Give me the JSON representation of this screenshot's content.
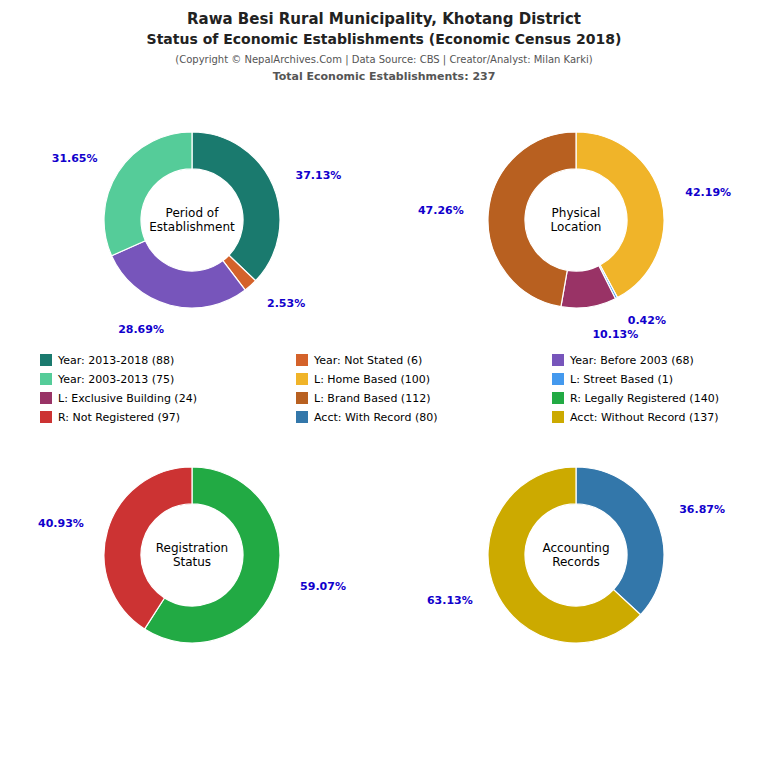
{
  "title": "Rawa Besi Rural Municipality, Khotang District",
  "subtitle": "Status of Economic Establishments (Economic Census 2018)",
  "annotations": [
    "(Copyright © NepalArchives.Com | Data Source: CBS | Creator/Analyst: Milan Karki)",
    "Total Economic Establishments: 237"
  ],
  "chart_data": [
    {
      "type": "pie",
      "title": "Period of\nEstablishment",
      "categories": [
        "Year: 2013-2018 (88)",
        "Year: Not Stated (6)",
        "Year: Before 2003 (68)",
        "Year: 2003-2013 (75)"
      ],
      "values": [
        37.13,
        2.53,
        28.69,
        31.65
      ],
      "value_labels": [
        "37.13%",
        "2.53%",
        "28.69%",
        "31.65%"
      ],
      "colors": [
        "#1a7a6e",
        "#d4622a",
        "#7755bb",
        "#55cc99"
      ],
      "data_labels": true
    },
    {
      "type": "pie",
      "title": "Physical\nLocation",
      "categories": [
        "L: Home Based (100)",
        "L: Street Based (1)",
        "L: Exclusive Building (24)",
        "L: Brand Based (112)"
      ],
      "values": [
        42.19,
        0.42,
        10.13,
        47.26
      ],
      "value_labels": [
        "42.19%",
        "0.42%",
        "10.13%",
        "47.26%"
      ],
      "colors": [
        "#f0b429",
        "#4499ee",
        "#993366",
        "#b86020"
      ],
      "data_labels": true
    },
    {
      "type": "pie",
      "title": "Registration\nStatus",
      "categories": [
        "R: Legally Registered (140)",
        "R: Not Registered (97)"
      ],
      "values": [
        59.07,
        40.93
      ],
      "value_labels": [
        "59.07%",
        "40.93%"
      ],
      "colors": [
        "#22aa44",
        "#cc3333"
      ],
      "data_labels": true
    },
    {
      "type": "pie",
      "title": "Accounting\nRecords",
      "categories": [
        "Acct: With Record (80)",
        "Acct: Without Record (137)"
      ],
      "values": [
        36.87,
        63.13
      ],
      "value_labels": [
        "36.87%",
        "63.13%"
      ],
      "colors": [
        "#3377aa",
        "#ccaa00"
      ],
      "data_labels": true
    }
  ]
}
